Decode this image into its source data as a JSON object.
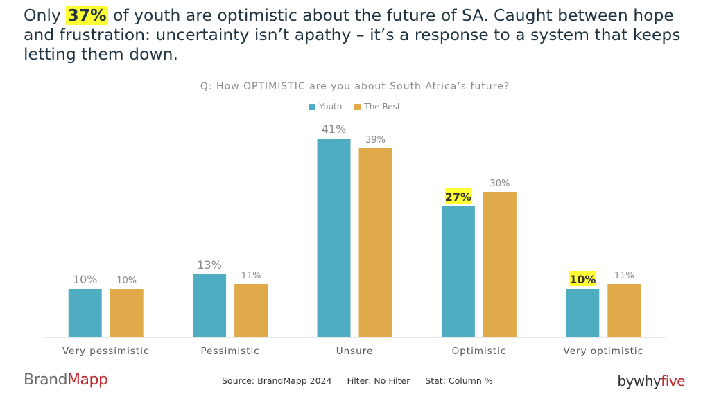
{
  "headline": {
    "part1": "Only ",
    "highlight": "37%",
    "part2": " of youth are optimistic about the future of SA. Caught between hope and frustration: uncertainty isn’t apathy – it’s a response to a system that keeps letting them down."
  },
  "chart_data": {
    "type": "bar",
    "title": "Q: How OPTIMISTIC are you about South Africa’s future?",
    "categories": [
      "Very pessimistic",
      "Pessimistic",
      "Unsure",
      "Optimistic",
      "Very optimistic"
    ],
    "series": [
      {
        "name": "Youth",
        "values": [
          10,
          13,
          41,
          27,
          10
        ],
        "labels": [
          "10%",
          "13%",
          "41%",
          "27%",
          "10%"
        ],
        "color": "#4fadc2"
      },
      {
        "name": "The Rest",
        "values": [
          10,
          11,
          39,
          30,
          11
        ],
        "labels": [
          "10%",
          "11%",
          "39%",
          "30%",
          "11%"
        ],
        "color": "#e0aa4b"
      }
    ],
    "highlighted_labels": [
      {
        "series": "Youth",
        "category": "Optimistic"
      },
      {
        "series": "Youth",
        "category": "Very optimistic"
      }
    ],
    "highlight_color": "#ffff33",
    "legend": "top-center",
    "grid": false
  },
  "footer": {
    "brand_left_1": "Brand",
    "brand_left_2": "Mapp",
    "source": "Source: BrandMapp 2024",
    "filter": "Filter: No Filter",
    "stat": "Stat: Column %",
    "brand_right_1": "bywhy",
    "brand_right_2": "five"
  }
}
